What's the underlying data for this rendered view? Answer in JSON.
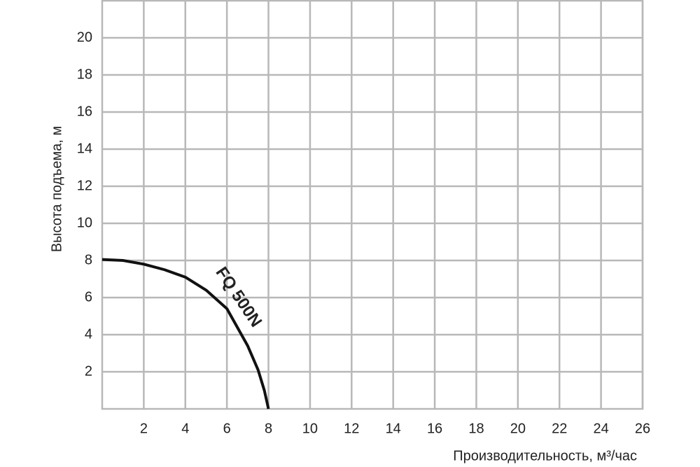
{
  "chart_data": {
    "type": "line",
    "x_label": "Производительность, м³/час",
    "y_label": "Высота подъема, м",
    "x": [
      0,
      1,
      2,
      3,
      4,
      5,
      6,
      7,
      7.5,
      7.8,
      8
    ],
    "series": [
      {
        "name": "FQ 500N",
        "color": "#111111",
        "values": [
          8.05,
          8.0,
          7.8,
          7.5,
          7.1,
          6.4,
          5.4,
          3.4,
          2.1,
          1.0,
          0
        ]
      }
    ],
    "xlim": [
      0,
      26
    ],
    "ylim": [
      0,
      22
    ],
    "xticks": [
      2,
      4,
      6,
      8,
      10,
      12,
      14,
      16,
      18,
      20,
      22,
      24,
      26
    ],
    "yticks": [
      2,
      4,
      6,
      8,
      10,
      12,
      14,
      16,
      18,
      20
    ],
    "grid": true
  }
}
